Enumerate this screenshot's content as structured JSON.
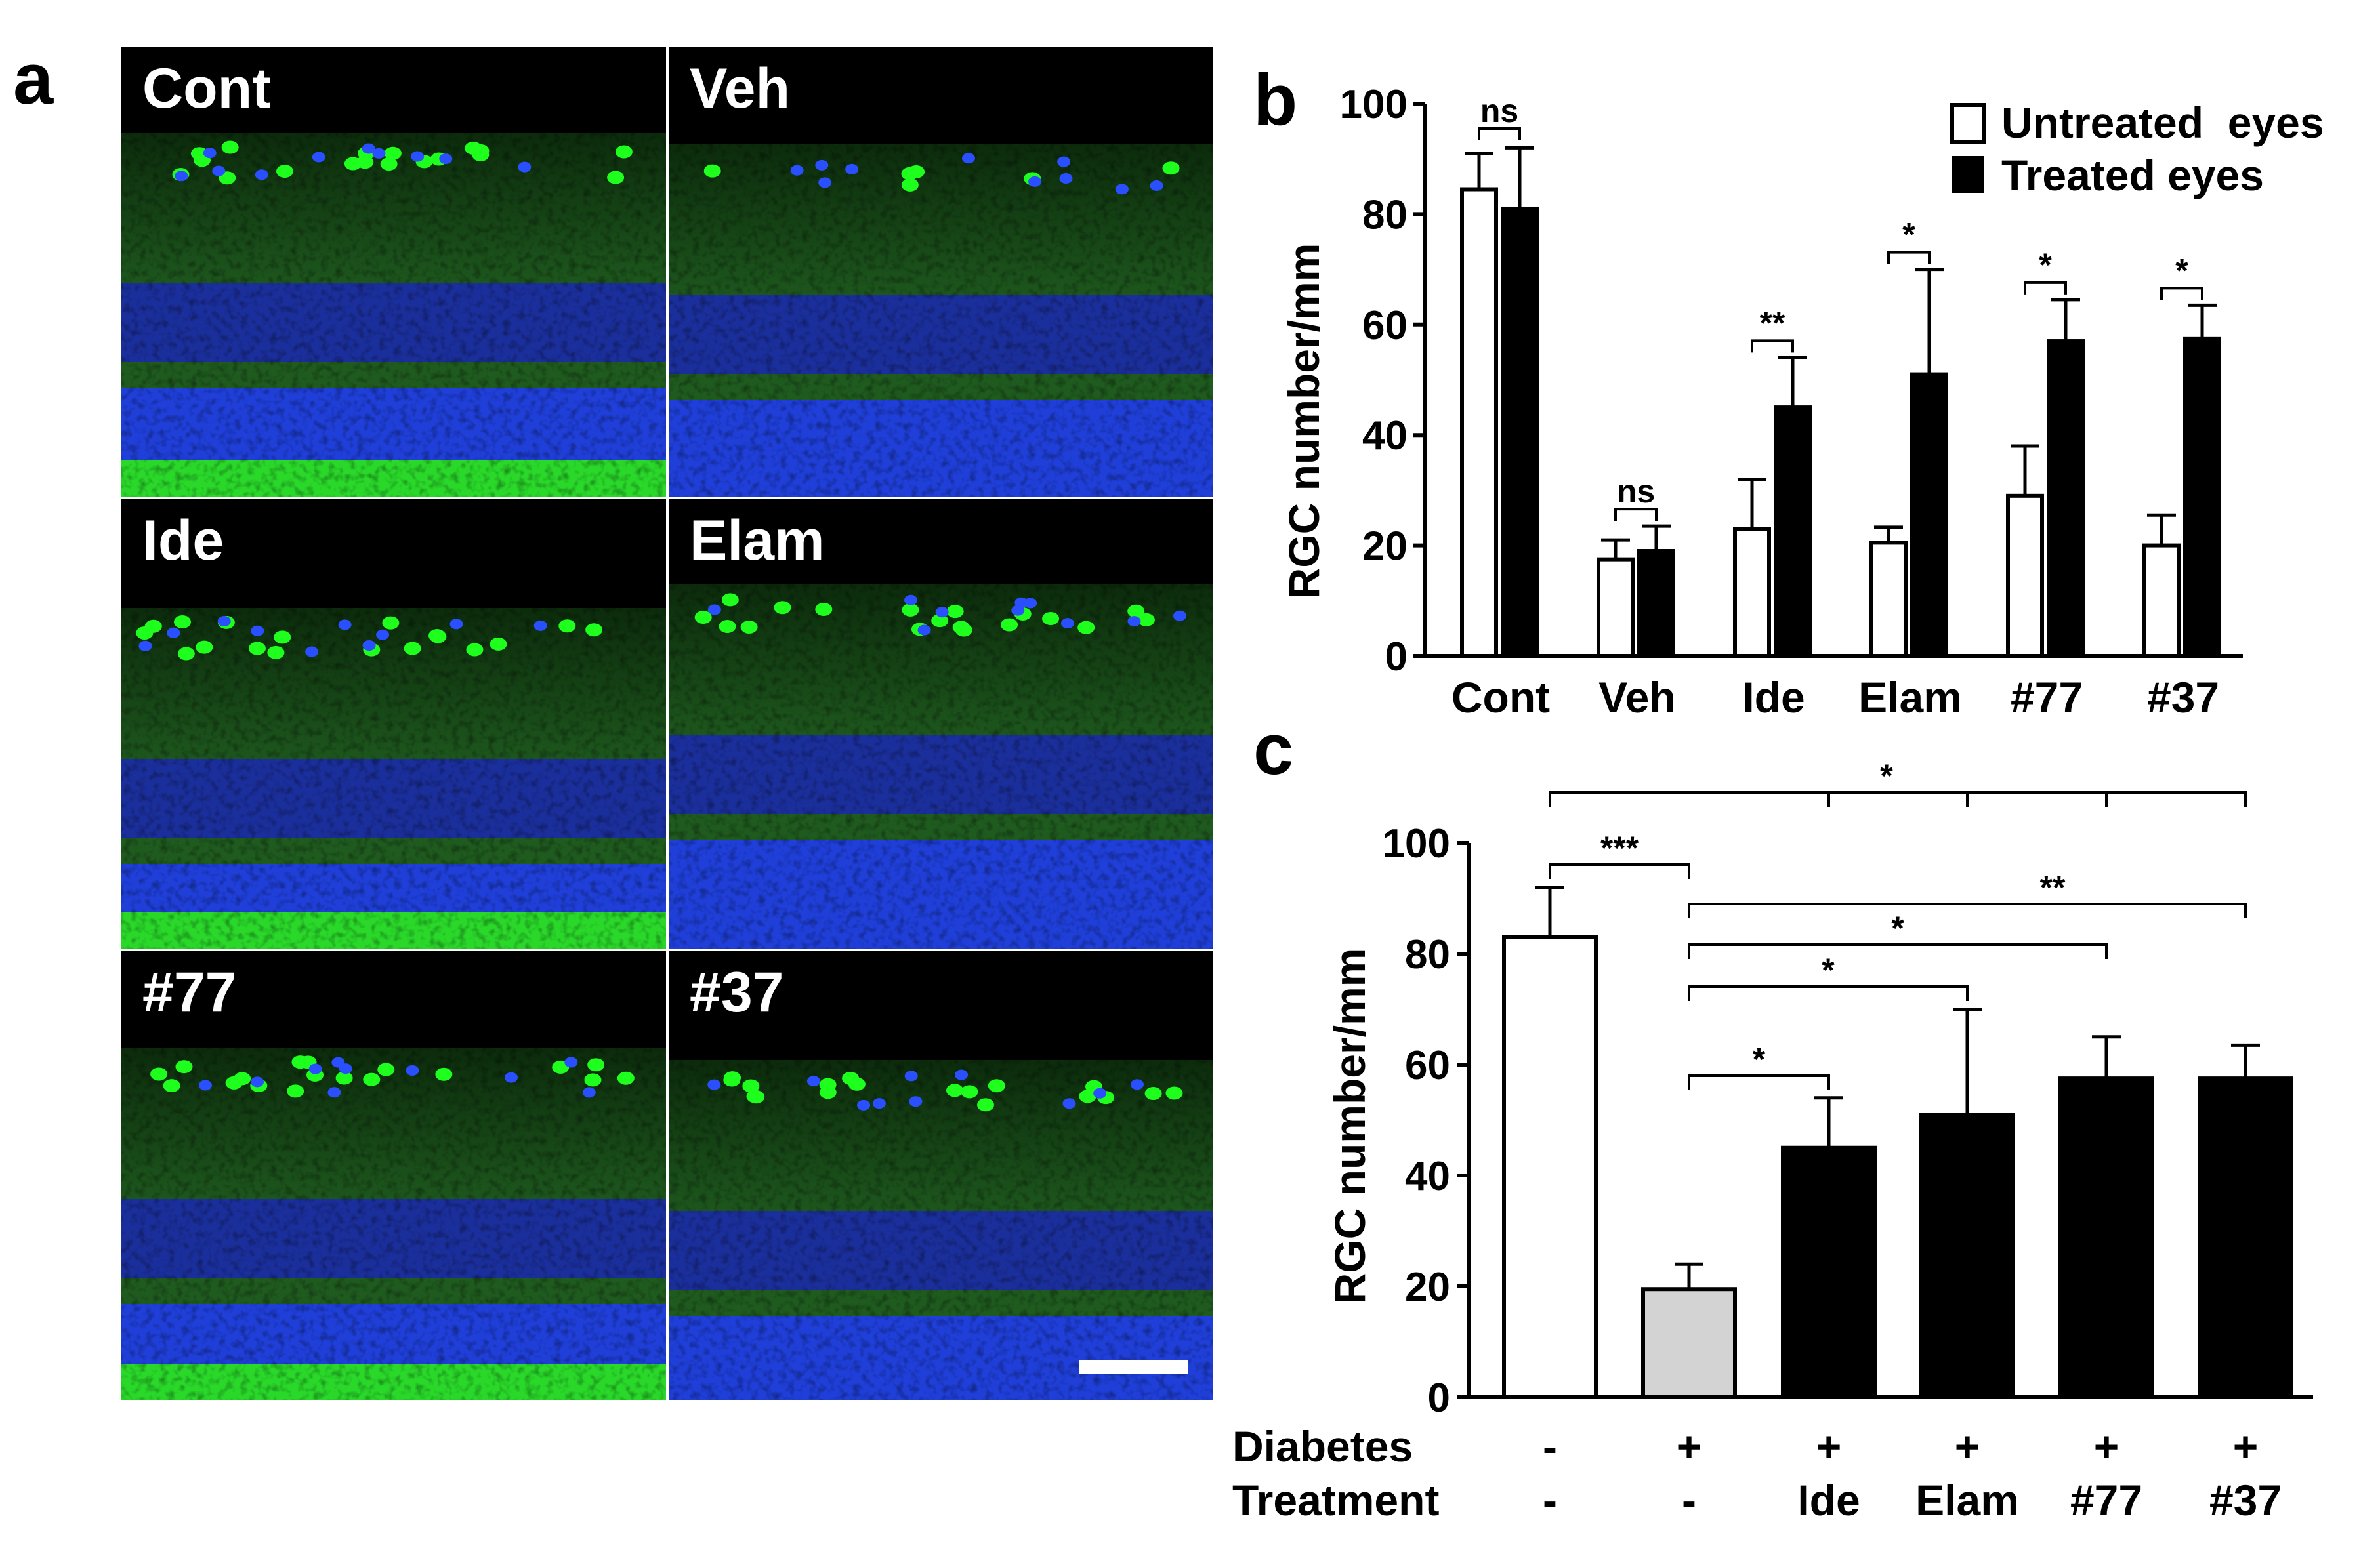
{
  "panel_labels": {
    "a": "a",
    "b": "b",
    "c": "c"
  },
  "micrographs": [
    {
      "label": "Cont"
    },
    {
      "label": "Veh"
    },
    {
      "label": "Ide"
    },
    {
      "label": "Elam"
    },
    {
      "label": "#77"
    },
    {
      "label": "#37"
    }
  ],
  "colors": {
    "gcl": "#1eff1e",
    "nuclei": "#1f3fd8",
    "tissue": "#1f5a1f",
    "photoreceptor": "#2ad82a",
    "gray_bar": "#d3d3d3"
  },
  "chart_data": [
    {
      "type": "bar",
      "panel": "b",
      "ylabel": "RGC number/mm",
      "ylim": [
        0,
        100
      ],
      "yticks": [
        "0",
        "20",
        "40",
        "60",
        "80",
        "100"
      ],
      "categories": [
        "Cont",
        "Veh",
        "Ide",
        "Elam",
        "#77",
        "#37"
      ],
      "series": [
        {
          "name": "Untreated  eyes",
          "values": [
            84.5,
            17.5,
            23,
            20.5,
            29,
            20
          ],
          "errors": [
            6.5,
            3.5,
            9,
            2.8,
            9,
            5.5
          ]
        },
        {
          "name": "Treated eyes",
          "values": [
            81,
            19,
            45,
            51,
            57,
            57.5
          ],
          "errors": [
            11,
            4.5,
            9,
            19,
            7.5,
            6
          ]
        }
      ],
      "significance": [
        "ns",
        "ns",
        "**",
        "*",
        "*",
        "*"
      ]
    },
    {
      "type": "bar",
      "panel": "c",
      "ylabel": "RGC number/mm",
      "ylim": [
        0,
        100
      ],
      "yticks": [
        "0",
        "20",
        "40",
        "60",
        "80",
        "100"
      ],
      "values": [
        83,
        19.5,
        45,
        51,
        57.5,
        57.5
      ],
      "errors": [
        9,
        4.5,
        9,
        19,
        7.5,
        6
      ],
      "bar_colors": [
        "white",
        "gray",
        "black",
        "black",
        "black",
        "black"
      ],
      "rows": [
        {
          "label": "Diabetes",
          "values": [
            "-",
            "+",
            "+",
            "+",
            "+",
            "+"
          ]
        },
        {
          "label": "Treatment",
          "values": [
            "-",
            "-",
            "Ide",
            "Elam",
            "#77",
            "#37"
          ]
        }
      ],
      "comparisons": [
        {
          "label": "*",
          "from": 0,
          "to": [
            2,
            3,
            4,
            5
          ]
        },
        {
          "label": "***",
          "from": 0,
          "to": [
            1
          ]
        },
        {
          "label": "**",
          "from": 1,
          "to": [
            5
          ]
        },
        {
          "label": "*",
          "from": 1,
          "to": [
            4
          ]
        },
        {
          "label": "*",
          "from": 1,
          "to": [
            3
          ]
        },
        {
          "label": "*",
          "from": 1,
          "to": [
            2
          ]
        }
      ]
    }
  ]
}
